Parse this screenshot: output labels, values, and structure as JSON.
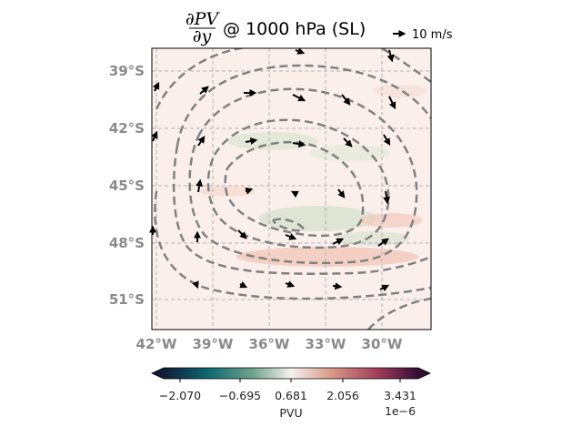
{
  "figure": {
    "title_numerator": "∂PV",
    "title_denominator": "∂y",
    "title_suffix": "@ 1000 hPa (SL)",
    "quiver_key_label": "10 m/s"
  },
  "map": {
    "lon_ticks": [
      "42°W",
      "39°W",
      "36°W",
      "33°W",
      "30°W"
    ],
    "lat_ticks": [
      "39°S",
      "42°S",
      "45°S",
      "48°S",
      "51°S"
    ],
    "lon_range": [
      -42.2,
      -27.5
    ],
    "lat_range": [
      -37.8,
      -52.6
    ],
    "gridlines": true,
    "gridline_style": "dashed",
    "contour_style": "dashed",
    "contour_color": "#808080",
    "background_tint": "#fbefeb"
  },
  "colorbar": {
    "label": "PVU",
    "scale_label": "1e−6",
    "tick_labels": [
      "−2.070",
      "−0.695",
      "0.681",
      "2.056",
      "3.431"
    ],
    "cmap": "curl",
    "cmap_colors": [
      "#0f1b37",
      "#0f6a72",
      "#6ea38b",
      "#f5f1ef",
      "#d89986",
      "#a13c5a",
      "#340d35"
    ],
    "extend": "both"
  }
}
